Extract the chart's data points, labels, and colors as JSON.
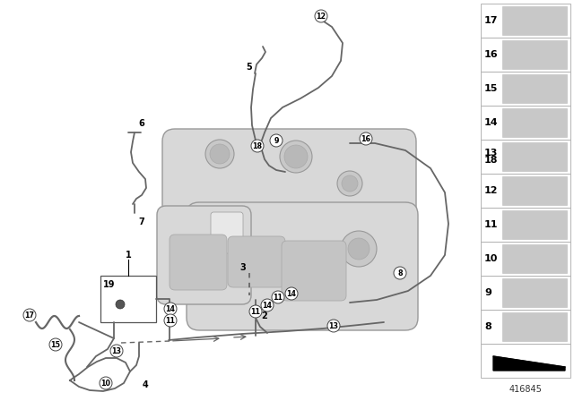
{
  "background_color": "#ffffff",
  "line_color": "#666666",
  "tank_fill": "#d8d8d8",
  "tank_edge": "#999999",
  "diagram_number": "416845",
  "right_items": [
    "17",
    "16",
    "15",
    "14",
    "13\n18",
    "12",
    "11",
    "10",
    "9",
    "8"
  ],
  "lw": 1.3
}
